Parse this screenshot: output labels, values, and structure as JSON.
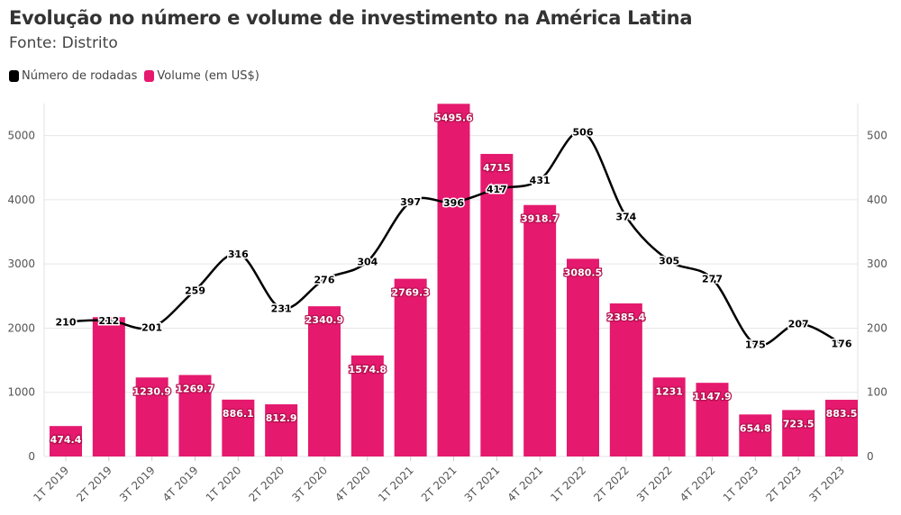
{
  "chart_data": {
    "type": "bar+line",
    "title": "Evolução no número e volume de investimento na América Latina",
    "subtitle": "Fonte: Distrito",
    "categories": [
      "1T 2019",
      "2T 2019",
      "3T 2019",
      "4T 2019",
      "1T 2020",
      "2T 2020",
      "3T 2020",
      "4T 2020",
      "1T 2021",
      "2T 2021",
      "3T 2021",
      "4T 2021",
      "1T 2022",
      "2T 2022",
      "3T 2022",
      "4T 2022",
      "1T 2023",
      "2T 2023",
      "3T 2023"
    ],
    "series": [
      {
        "name": "Volume (em US$)",
        "type": "bar",
        "axis": "left",
        "color": "#e5196e",
        "values": [
          474.4,
          2171,
          1230.9,
          1269.7,
          886.1,
          812.9,
          2340.9,
          1574.8,
          2769.3,
          5495.6,
          4715,
          3918.7,
          3080.5,
          2385.4,
          1231,
          1147.9,
          654.8,
          723.5,
          883.5
        ],
        "labels": [
          "474.4",
          "",
          "1230.9",
          "1269.7",
          "886.1",
          "812.9",
          "2340.9",
          "1574.8",
          "2769.3",
          "5495.6",
          "4715",
          "3918.7",
          "3080.5",
          "2385.4",
          "1231",
          "1147.9",
          "654.8",
          "723.5",
          "883.5"
        ]
      },
      {
        "name": "Número de rodadas",
        "type": "line",
        "axis": "right",
        "color": "#000000",
        "values": [
          210,
          212,
          201,
          259,
          316,
          231,
          276,
          304,
          397,
          396,
          417,
          431,
          506,
          374,
          305,
          277,
          175,
          207,
          176
        ]
      }
    ],
    "y_left": {
      "ticks": [
        0,
        1000,
        2000,
        3000,
        4000,
        5000
      ],
      "range": [
        0,
        5500
      ]
    },
    "y_right": {
      "ticks": [
        0,
        100,
        200,
        300,
        400,
        500
      ],
      "range": [
        0,
        550
      ]
    },
    "grid": true,
    "legend": "top-left"
  }
}
